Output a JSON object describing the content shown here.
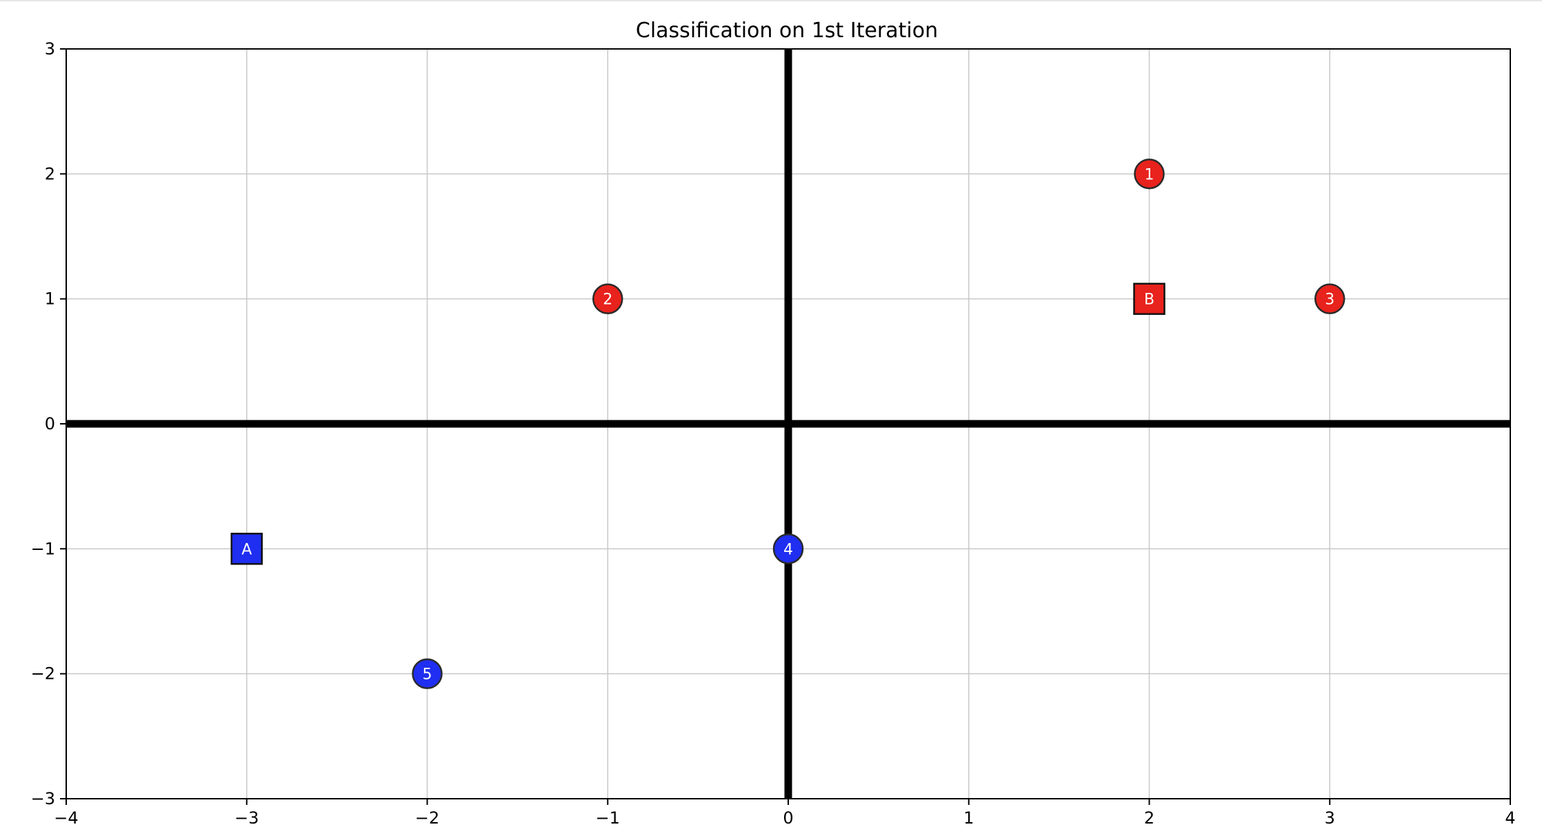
{
  "chart_data": {
    "type": "scatter",
    "title": "Classification on 1st Iteration",
    "xlabel": "",
    "ylabel": "",
    "xlim": [
      -4,
      4
    ],
    "ylim": [
      -3,
      3
    ],
    "x_ticks": [
      -4,
      -3,
      -2,
      -1,
      0,
      1,
      2,
      3,
      4
    ],
    "y_ticks": [
      -3,
      -2,
      -1,
      0,
      1,
      2,
      3
    ],
    "x_tick_labels": [
      "−4",
      "−3",
      "−2",
      "−1",
      "0",
      "1",
      "2",
      "3",
      "4"
    ],
    "y_tick_labels": [
      "−3",
      "−2",
      "−1",
      "0",
      "1",
      "2",
      "3"
    ],
    "grid": true,
    "colors": {
      "red": "#e8221c",
      "blue": "#1f2ef0",
      "boundary": "#000000",
      "grid": "#c8c8c8",
      "marker_edge": "#2a2a2a"
    },
    "boundary_lines": [
      {
        "orientation": "horizontal",
        "y": 0
      },
      {
        "orientation": "vertical",
        "x": 0
      }
    ],
    "points": [
      {
        "label": "1",
        "x": 2,
        "y": 2,
        "class": "red",
        "marker": "circle"
      },
      {
        "label": "2",
        "x": -1,
        "y": 1,
        "class": "red",
        "marker": "circle"
      },
      {
        "label": "3",
        "x": 3,
        "y": 1,
        "class": "red",
        "marker": "circle"
      },
      {
        "label": "4",
        "x": 0,
        "y": -1,
        "class": "blue",
        "marker": "circle"
      },
      {
        "label": "5",
        "x": -2,
        "y": -2,
        "class": "blue",
        "marker": "circle"
      }
    ],
    "centroids": [
      {
        "label": "A",
        "x": -3,
        "y": -1,
        "class": "blue",
        "marker": "square"
      },
      {
        "label": "B",
        "x": 2,
        "y": 1,
        "class": "red",
        "marker": "square"
      }
    ]
  }
}
